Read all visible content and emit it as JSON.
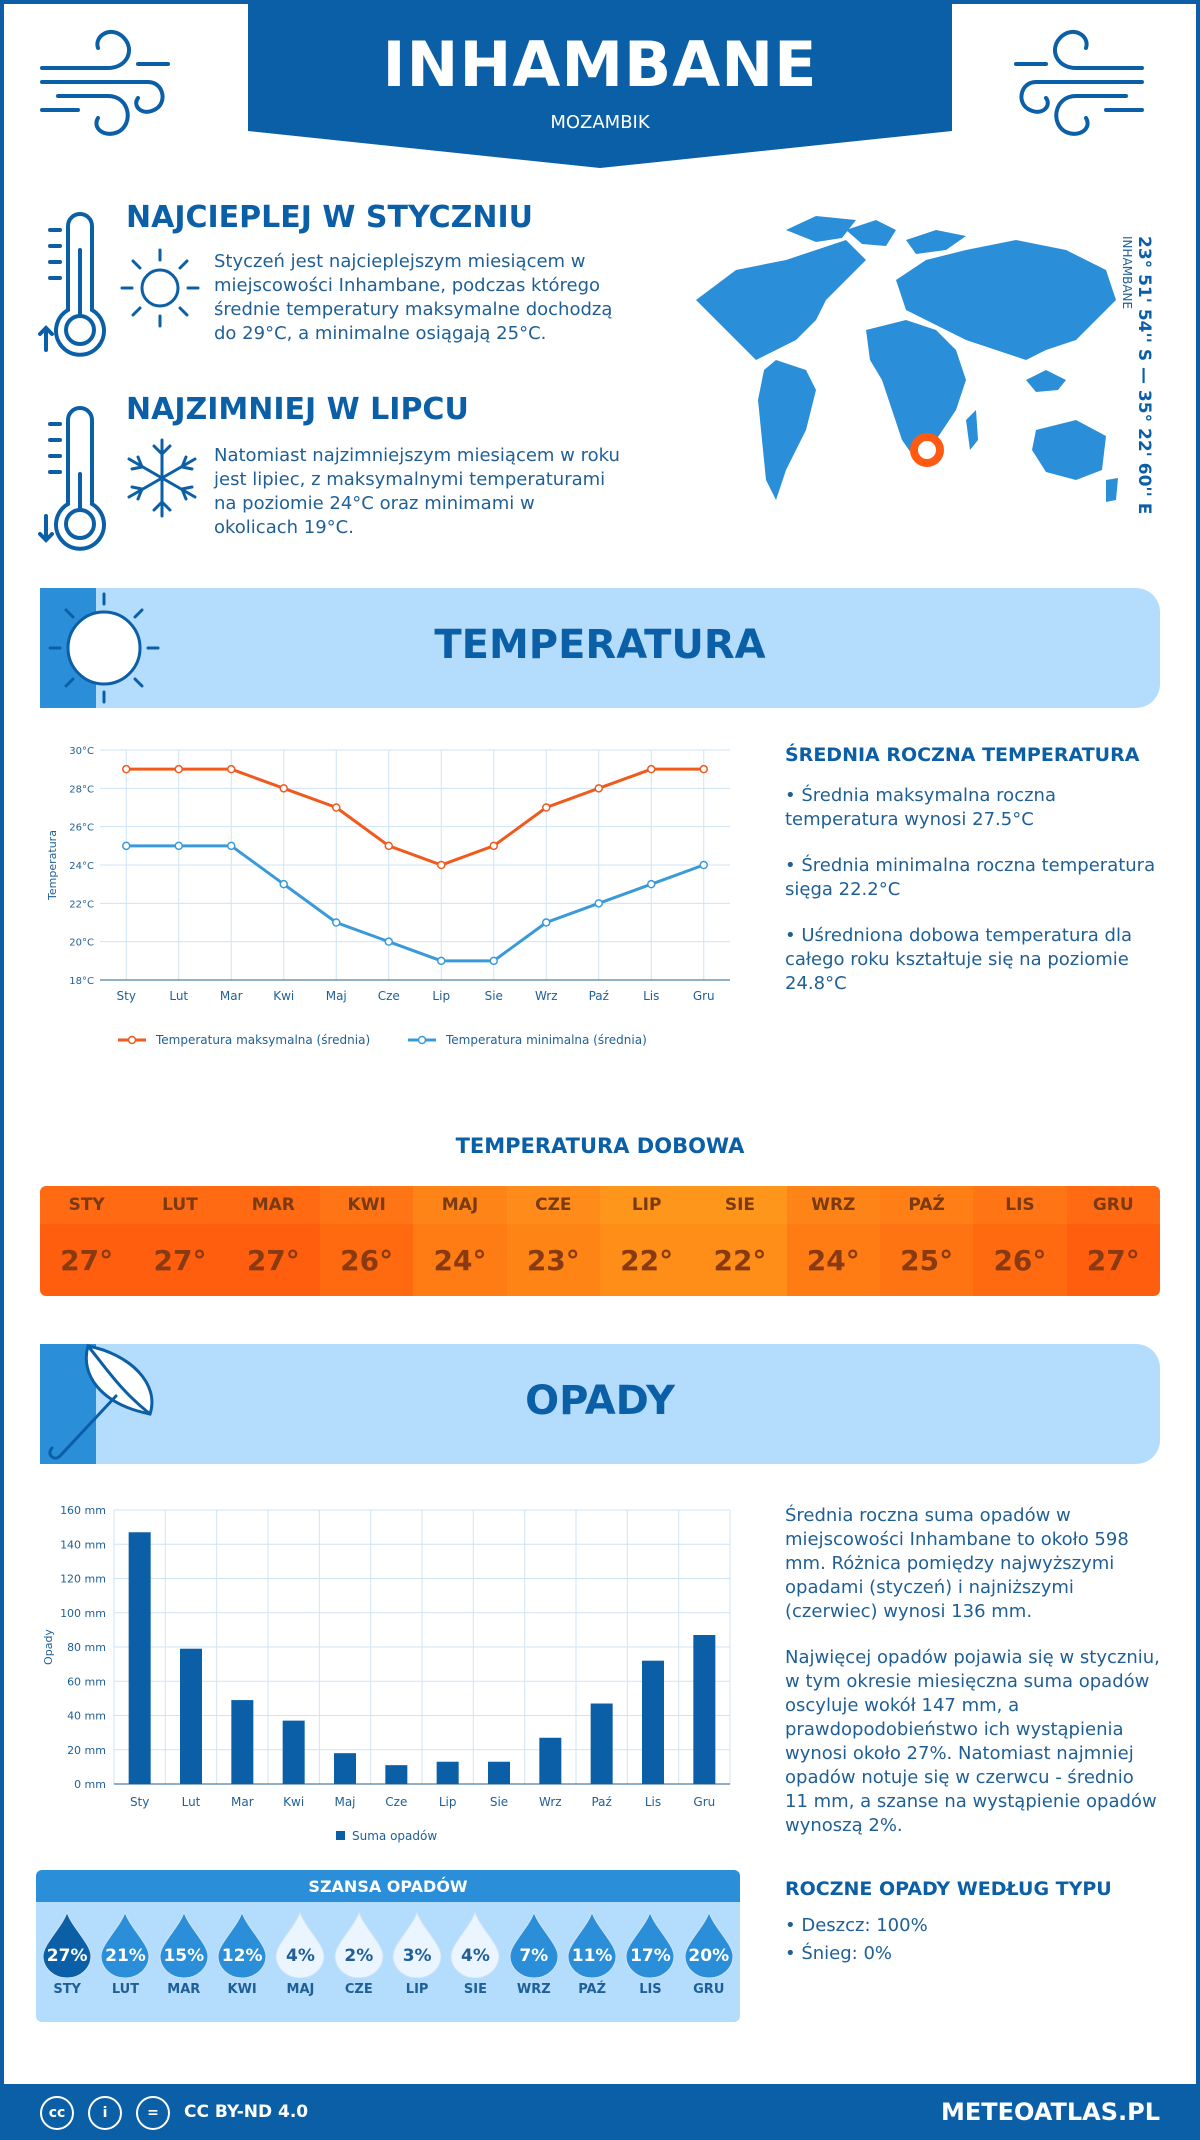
{
  "header": {
    "title": "INHAMBANE",
    "country": "MOZAMBIK"
  },
  "warmest": {
    "title": "NAJCIEPLEJ W STYCZNIU",
    "text": "Styczeń jest najcieplejszym miesiącem w miejscowości Inhambane, podczas którego średnie temperatury maksymalne dochodzą do 29°C, a minimalne osiągają 25°C."
  },
  "coldest": {
    "title": "NAJZIMNIEJ W LIPCU",
    "text": "Natomiast najzimniejszym miesiącem w roku jest lipiec, z maksymalnymi temperaturami na poziomie 24°C oraz minimami w okolicach 19°C."
  },
  "map": {
    "coords": "23° 51' 54'' S — 35° 22' 60'' E",
    "place": "INHAMBANE",
    "marker_color": "#ff5a12"
  },
  "temp_banner": {
    "title": "TEMPERATURA"
  },
  "temp_side": {
    "title": "ŚREDNIA ROCZNA TEMPERATURA",
    "p1": "• Średnia maksymalna roczna temperatura wynosi 27.5°C",
    "p2": "• Średnia minimalna roczna temperatura sięga 22.2°C",
    "p3": "• Uśredniona dobowa temperatura dla całego roku kształtuje się na poziomie 24.8°C"
  },
  "daily": {
    "title": "TEMPERATURA DOBOWA",
    "months": [
      "STY",
      "LUT",
      "MAR",
      "KWI",
      "MAJ",
      "CZE",
      "LIP",
      "SIE",
      "WRZ",
      "PAŹ",
      "LIS",
      "GRU"
    ],
    "values": [
      "27°",
      "27°",
      "27°",
      "26°",
      "24°",
      "23°",
      "22°",
      "22°",
      "24°",
      "25°",
      "26°",
      "27°"
    ],
    "top_colors": [
      "#ff6a12",
      "#ff6a12",
      "#ff6a12",
      "#ff7414",
      "#ff8418",
      "#ff8c1a",
      "#ff961c",
      "#ff961c",
      "#ff8418",
      "#ff7e16",
      "#ff7414",
      "#ff6a12"
    ],
    "bottom_colors": [
      "#ff5e0e",
      "#ff5e0e",
      "#ff5e0e",
      "#ff6a10",
      "#ff7c14",
      "#ff8416",
      "#ff8e18",
      "#ff8e18",
      "#ff7c14",
      "#ff7412",
      "#ff6a10",
      "#ff5e0e"
    ]
  },
  "precip_banner": {
    "title": "OPADY"
  },
  "precip_side": {
    "p1": "Średnia roczna suma opadów w miejscowości Inhambane to około 598 mm. Różnica pomiędzy najwyższymi opadami (styczeń) i najniższymi (czerwiec) wynosi 136 mm.",
    "p2": "Najwięcej opadów pojawia się w styczniu, w tym okresie miesięczna suma opadów oscyluje wokół 147 mm, a prawdopodobieństwo ich wystąpienia wynosi około 27%. Natomiast najmniej opadów notuje się w czerwcu - średnio 11 mm, a szanse na wystąpienie opadów wynoszą 2%.",
    "type_title": "ROCZNE OPADY WEDŁUG TYPU",
    "rain": "• Deszcz: 100%",
    "snow": "• Śnieg: 0%"
  },
  "chance": {
    "title": "SZANSA OPADÓW",
    "months": [
      "STY",
      "LUT",
      "MAR",
      "KWI",
      "MAJ",
      "CZE",
      "LIP",
      "SIE",
      "WRZ",
      "PAŹ",
      "LIS",
      "GRU"
    ],
    "values": [
      "27%",
      "21%",
      "15%",
      "12%",
      "4%",
      "2%",
      "3%",
      "4%",
      "7%",
      "11%",
      "17%",
      "20%"
    ],
    "colors": [
      "#0b5fa6",
      "#2a8fd8",
      "#2a8fd8",
      "#2a8fd8",
      "#eaf5ff",
      "#eaf5ff",
      "#eaf5ff",
      "#eaf5ff",
      "#2a8fd8",
      "#2a8fd8",
      "#2a8fd8",
      "#2a8fd8"
    ],
    "text_colors": [
      "#ffffff",
      "#ffffff",
      "#ffffff",
      "#ffffff",
      "#1f5f96",
      "#1f5f96",
      "#1f5f96",
      "#1f5f96",
      "#ffffff",
      "#ffffff",
      "#ffffff",
      "#ffffff"
    ]
  },
  "footer": {
    "license": "CC BY-ND 4.0",
    "site": "METEOATLAS.PL"
  },
  "chart_data": [
    {
      "type": "line",
      "categories": [
        "Sty",
        "Lut",
        "Mar",
        "Kwi",
        "Maj",
        "Cze",
        "Lip",
        "Sie",
        "Wrz",
        "Paź",
        "Lis",
        "Gru"
      ],
      "series": [
        {
          "name": "Temperatura maksymalna (średnia)",
          "values": [
            29,
            29,
            29,
            28,
            27,
            25,
            24,
            25,
            27,
            28,
            29,
            29
          ],
          "color": "#f05a1e"
        },
        {
          "name": "Temperatura minimalna (średnia)",
          "values": [
            25,
            25,
            25,
            23,
            21,
            20,
            19,
            19,
            21,
            22,
            23,
            24
          ],
          "color": "#3a9ad9"
        }
      ],
      "ylabel": "Temperatura",
      "ylim": [
        18,
        30
      ],
      "yticks": [
        "18°C",
        "20°C",
        "22°C",
        "24°C",
        "26°C",
        "28°C",
        "30°C"
      ],
      "grid": true,
      "legend": "bottom"
    },
    {
      "type": "bar",
      "categories": [
        "Sty",
        "Lut",
        "Mar",
        "Kwi",
        "Maj",
        "Cze",
        "Lip",
        "Sie",
        "Wrz",
        "Paź",
        "Lis",
        "Gru"
      ],
      "series": [
        {
          "name": "Suma opadów",
          "values": [
            147,
            79,
            49,
            37,
            18,
            11,
            13,
            13,
            27,
            47,
            72,
            87
          ],
          "color": "#0b5fa6"
        }
      ],
      "ylabel": "Opady",
      "ylim": [
        0,
        160
      ],
      "yticks": [
        "0 mm",
        "20 mm",
        "40 mm",
        "60 mm",
        "80 mm",
        "100 mm",
        "120 mm",
        "140 mm",
        "160 mm"
      ],
      "grid": true,
      "legend": "bottom"
    }
  ]
}
